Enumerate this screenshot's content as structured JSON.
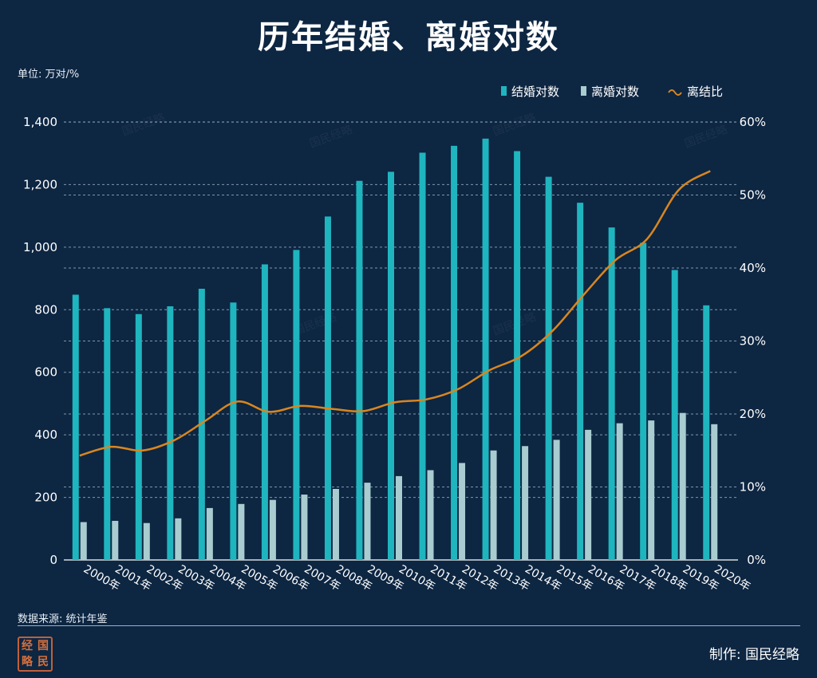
{
  "header": {
    "title": "历年结婚、离婚对数",
    "unit_label": "单位: 万对/%"
  },
  "footer": {
    "source": "数据来源: 统计年鉴",
    "credit": "制作:  国民经略",
    "logo_chars": [
      "经",
      "国",
      "略",
      "民"
    ]
  },
  "colors": {
    "background": "#0d2642",
    "marriage_bar": "#1fb5bf",
    "divorce_bar": "#a8ccd0",
    "ratio_line": "#d9861f",
    "grid": "#9fb2c8"
  },
  "chart_data": {
    "type": "bar",
    "categories": [
      "2000年",
      "2001年",
      "2002年",
      "2003年",
      "2004年",
      "2005年",
      "2006年",
      "2007年",
      "2008年",
      "2009年",
      "2010年",
      "2011年",
      "2012年",
      "2013年",
      "2014年",
      "2015年",
      "2016年",
      "2017年",
      "2018年",
      "2019年",
      "2020年"
    ],
    "series": [
      {
        "name": "结婚对数",
        "type": "bar",
        "axis": "left",
        "values": [
          848,
          805,
          786,
          811,
          867,
          823,
          945,
          991,
          1098,
          1212,
          1241,
          1302,
          1324,
          1347,
          1307,
          1225,
          1142,
          1063,
          1014,
          927,
          814
        ]
      },
      {
        "name": "离婚对数",
        "type": "bar",
        "axis": "left",
        "values": [
          121,
          125,
          118,
          133,
          166,
          179,
          192,
          209,
          227,
          247,
          268,
          287,
          310,
          350,
          364,
          384,
          416,
          437,
          446,
          470,
          434
        ]
      },
      {
        "name": "离结比",
        "type": "line",
        "axis": "right",
        "values": [
          14.3,
          15.5,
          15.0,
          16.4,
          19.1,
          21.7,
          20.3,
          21.1,
          20.7,
          20.4,
          21.6,
          22.0,
          23.4,
          26.0,
          27.9,
          31.4,
          36.4,
          41.1,
          44.0,
          50.7,
          53.3
        ]
      }
    ],
    "left_axis": {
      "min": 0,
      "max": 1400,
      "ticks": [
        "0",
        "200",
        "400",
        "600",
        "800",
        "1,000",
        "1,200",
        "1,400"
      ],
      "tick_values": [
        0,
        200,
        400,
        600,
        800,
        1000,
        1200,
        1400
      ]
    },
    "right_axis": {
      "min": 0,
      "max": 60,
      "ticks": [
        "0%",
        "10%",
        "20%",
        "30%",
        "40%",
        "50%",
        "60%"
      ],
      "tick_values": [
        0,
        10,
        20,
        30,
        40,
        50,
        60
      ]
    },
    "legend": [
      "结婚对数",
      "离婚对数",
      "离结比"
    ],
    "legend_position": "top-right",
    "grid": true,
    "watermark_text": "国民经略"
  }
}
